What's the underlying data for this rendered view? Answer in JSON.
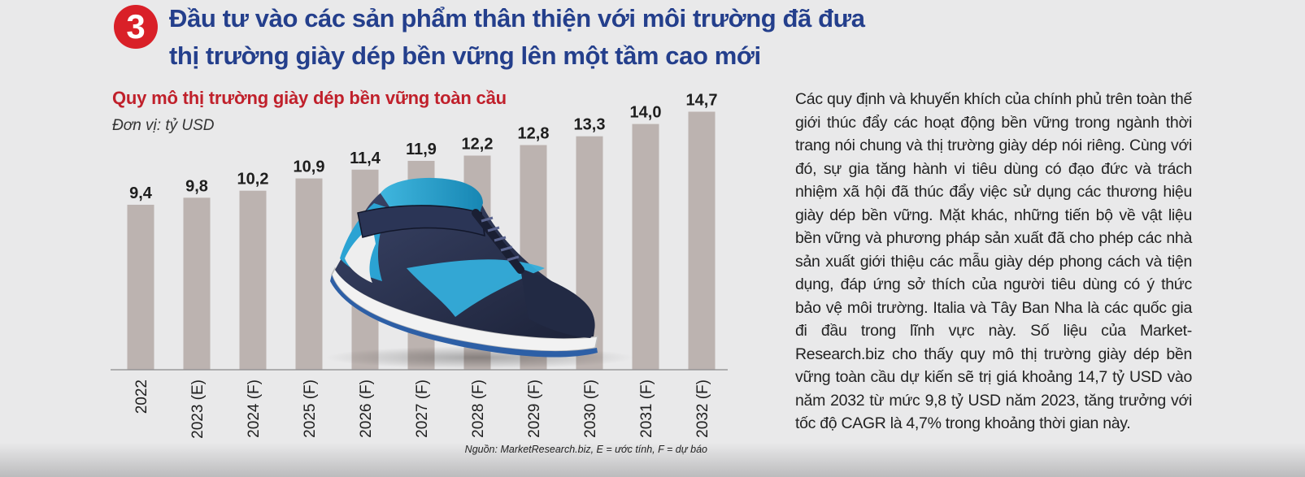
{
  "badge": "3",
  "headline": {
    "line1": "Đầu tư vào các sản phẩm thân thiện với môi trường đã đưa",
    "line2": "thị trường giày dép bền vững lên một tầm cao mới"
  },
  "chart_data": {
    "type": "bar",
    "title": "Quy mô thị trường giày dép bền vững toàn cầu",
    "unit": "Đơn vị: tỷ USD",
    "categories": [
      "2022",
      "2023 (E)",
      "2024 (F)",
      "2025 (F)",
      "2026 (F)",
      "2027 (F)",
      "2028 (F)",
      "2029 (F)",
      "2030 (F)",
      "2031 (F)",
      "2032 (F)"
    ],
    "values": [
      9.4,
      9.8,
      10.2,
      10.9,
      11.4,
      11.9,
      12.2,
      12.8,
      13.3,
      14.0,
      14.7
    ],
    "value_labels": [
      "9,4",
      "9,8",
      "10,2",
      "10,9",
      "11,4",
      "11,9",
      "12,2",
      "12,8",
      "13,3",
      "14,0",
      "14,7"
    ],
    "bar_color": "#bcb3b0",
    "source": "Nguồn: MarketResearch.biz, E = ước tính, F = dự báo"
  },
  "article": {
    "text": "Các quy định và khuyến khích của chính phủ trên toàn thế giới thúc đẩy các hoạt động bền vững trong ngành thời trang nói chung và thị trường giày dép nói riêng. Cùng với đó, sự gia tăng hành vi tiêu dùng có đạo đức và trách nhiệm xã hội đã thúc đẩy việc sử dụng các thương hiệu giày dép bền vững. Mặt khác, những tiến bộ về vật liệu bền vững và phương pháp sản xuất đã cho phép các nhà sản xuất giới thiệu các mẫu giày dép phong cách và tiện dụng, đáp ứng sở thích của người tiêu dùng có ý thức bảo vệ môi trường. Italia và Tây Ban Nha là các quốc gia đi đầu trong lĩnh vực này. Số liệu của Market-Research.biz cho thấy quy mô thị trường giày dép bền vững toàn cầu dự kiến sẽ trị giá khoảng 14,7 tỷ USD vào năm 2032 từ mức 9,8 tỷ USD năm 2023, tăng trưởng với tốc độ CAGR là 4,7% trong khoảng thời gian này."
  },
  "colors": {
    "headline": "#243f8c",
    "accent_red": "#c0202b",
    "background": "#e9e9ea"
  },
  "illustration": "sneaker-icon"
}
